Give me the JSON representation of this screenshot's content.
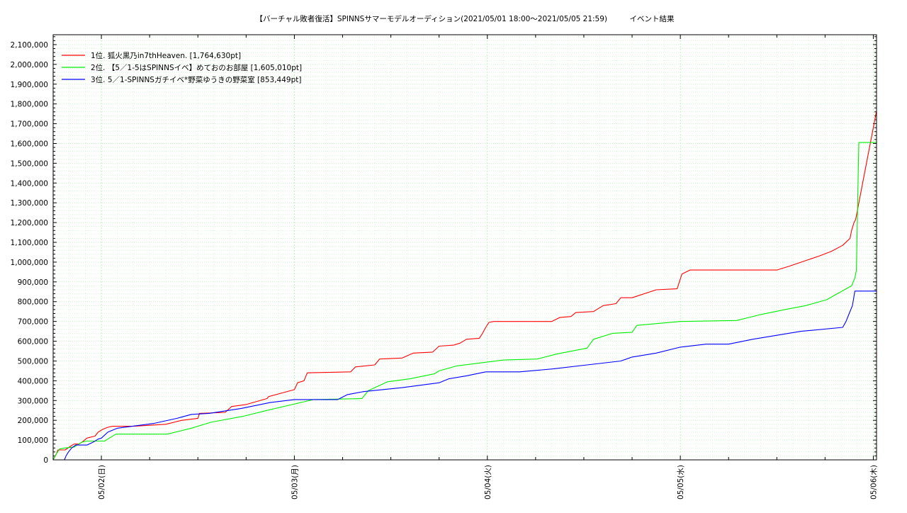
{
  "chart_data": {
    "type": "line",
    "title": "【バーチャル敗者復活】SPINNSサマーモデルオーディション(2021/05/01 18:00～2021/05/05 21:59)　　　イベント結果",
    "xlabel": "",
    "ylabel": "",
    "x_unit": "hours since 2021/05/01 18:00",
    "xlim": [
      0,
      102.4
    ],
    "ylim": [
      0,
      2150000
    ],
    "yticks": [
      0,
      100000,
      200000,
      300000,
      400000,
      500000,
      600000,
      700000,
      800000,
      900000,
      1000000,
      1100000,
      1200000,
      1300000,
      1400000,
      1500000,
      1600000,
      1700000,
      1800000,
      1900000,
      2000000,
      2100000
    ],
    "ytick_labels": [
      "0",
      "100,000",
      "200,000",
      "300,000",
      "400,000",
      "500,000",
      "600,000",
      "700,000",
      "800,000",
      "900,000",
      "1,000,000",
      "1,100,000",
      "1,200,000",
      "1,300,000",
      "1,400,000",
      "1,500,000",
      "1,600,000",
      "1,700,000",
      "1,800,000",
      "1,900,000",
      "2,000,000",
      "2,100,000"
    ],
    "xticks": [
      {
        "x": 6,
        "label": "05/02(日)"
      },
      {
        "x": 30,
        "label": "05/03(月)"
      },
      {
        "x": 54,
        "label": "05/04(火)"
      },
      {
        "x": 78,
        "label": "05/05(水)"
      },
      {
        "x": 102,
        "label": "05/06(木)"
      }
    ],
    "grid": true,
    "legend_position": "top-left",
    "series": [
      {
        "name": "1位. 狐火黒乃in7thHeaven. [1,764,630pt]",
        "color": "#ff0000",
        "x": [
          0,
          0.4,
          0.6,
          1.5,
          2.2,
          2.6,
          3.2,
          3.6,
          4.2,
          5.2,
          5.6,
          6.2,
          6.8,
          7.4,
          10,
          14,
          16,
          18,
          18.2,
          21.4,
          22.2,
          24,
          26.6,
          26.8,
          30,
          30.4,
          31.2,
          31.6,
          37,
          37.6,
          40,
          40.6,
          43.4,
          44.8,
          47.2,
          48,
          49.8,
          50.6,
          51.4,
          53,
          53.4,
          53.8,
          54.2,
          54.8,
          62,
          63,
          64.4,
          65,
          67.2,
          68.4,
          70,
          70.6,
          72,
          75,
          77.6,
          78.2,
          79.2,
          83,
          84,
          90,
          91.6,
          93.4,
          95.2,
          96.8,
          98.2,
          99.1,
          99.3,
          99.6,
          99.8,
          102.4
        ],
        "y": [
          0,
          30000,
          50000,
          50000,
          70000,
          80000,
          80000,
          90000,
          110000,
          120000,
          140000,
          155000,
          165000,
          170000,
          170000,
          180000,
          200000,
          210000,
          235000,
          240000,
          270000,
          280000,
          310000,
          320000,
          355000,
          390000,
          400000,
          440000,
          445000,
          470000,
          480000,
          510000,
          515000,
          540000,
          545000,
          575000,
          580000,
          590000,
          610000,
          615000,
          640000,
          670000,
          695000,
          700000,
          700000,
          720000,
          725000,
          745000,
          750000,
          780000,
          790000,
          820000,
          820000,
          860000,
          865000,
          940000,
          960000,
          960000,
          960000,
          960000,
          980000,
          1005000,
          1030000,
          1055000,
          1085000,
          1120000,
          1160000,
          1200000,
          1215000,
          1764630
        ],
        "step": true
      },
      {
        "name": "2位. 【5／1-5はSPINNSイベ】めておのお部屋 [1,605,010pt]",
        "color": "#00ee00",
        "x": [
          0,
          0.4,
          0.8,
          1.4,
          2.6,
          3.2,
          3.6,
          4.2,
          6.4,
          7.0,
          7.8,
          14.2,
          17.2,
          19.6,
          23.6,
          26.6,
          32.4,
          38.4,
          39.2,
          41.6,
          44.4,
          47.4,
          48,
          50.2,
          56,
          60.2,
          62.6,
          63.2,
          66.4,
          67.2,
          69.6,
          72,
          72.6,
          78,
          85,
          88,
          91,
          93.6,
          96.2,
          98.4,
          99.3,
          99.7,
          99.9,
          100.2,
          102.4
        ],
        "y": [
          0,
          30000,
          55000,
          60000,
          65000,
          80000,
          90000,
          95000,
          95000,
          110000,
          130000,
          130000,
          160000,
          190000,
          220000,
          250000,
          305000,
          310000,
          350000,
          395000,
          410000,
          435000,
          450000,
          475000,
          505000,
          510000,
          535000,
          540000,
          565000,
          610000,
          640000,
          645000,
          680000,
          700000,
          705000,
          735000,
          760000,
          780000,
          810000,
          860000,
          880000,
          920000,
          960000,
          1605010,
          1605010
        ],
        "step": true
      },
      {
        "name": "3位. 5／1-SPINNSガチイベ*野菜ゆうきの野菜室 [853,449pt]",
        "color": "#0000ff",
        "x": [
          0,
          1.4,
          1.6,
          1.9,
          2.3,
          2.8,
          4.2,
          5.0,
          5.6,
          6.0,
          6.8,
          8.0,
          12.6,
          15.4,
          17.2,
          19.4,
          23.4,
          27.0,
          30.0,
          35.4,
          36.6,
          38.6,
          43.4,
          48.0,
          49.2,
          51.4,
          53.2,
          53.8,
          58,
          62.2,
          66.4,
          70.6,
          72,
          75,
          78,
          81.2,
          84,
          87,
          93,
          98.2,
          98.6,
          99.0,
          99.4,
          99.7,
          102.4
        ],
        "y": [
          0,
          0,
          20000,
          40000,
          60000,
          75000,
          75000,
          90000,
          105000,
          110000,
          140000,
          160000,
          185000,
          210000,
          230000,
          235000,
          260000,
          290000,
          305000,
          305000,
          330000,
          345000,
          365000,
          390000,
          410000,
          425000,
          440000,
          445000,
          445000,
          460000,
          480000,
          500000,
          520000,
          540000,
          570000,
          585000,
          585000,
          610000,
          650000,
          670000,
          700000,
          740000,
          780000,
          853449,
          853449
        ],
        "step": true
      }
    ]
  }
}
